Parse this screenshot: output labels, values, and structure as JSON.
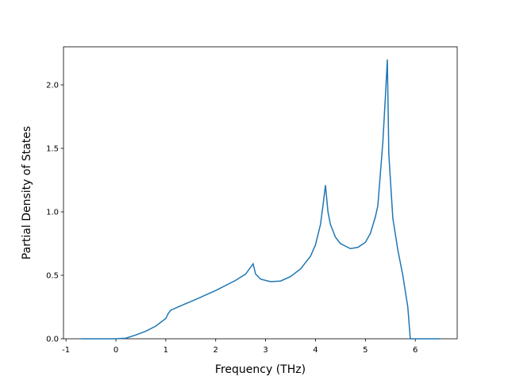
{
  "chart_data": {
    "type": "line",
    "xlabel": "Frequency (THz)",
    "ylabel": "Partial Density of States",
    "x": [
      -0.7,
      0,
      0.2,
      0.4,
      0.6,
      0.8,
      1.0,
      1.05,
      1.1,
      1.3,
      1.6,
      2.0,
      2.4,
      2.6,
      2.75,
      2.8,
      2.9,
      3.1,
      3.3,
      3.5,
      3.7,
      3.9,
      4.0,
      4.1,
      4.15,
      4.2,
      4.25,
      4.3,
      4.4,
      4.5,
      4.7,
      4.85,
      5.0,
      5.1,
      5.2,
      5.25,
      5.3,
      5.35,
      5.4,
      5.44,
      5.47,
      5.55,
      5.65,
      5.75,
      5.85,
      5.9,
      6.0,
      6.5
    ],
    "series": [
      {
        "color": "#1f77b4",
        "values": [
          0,
          0,
          0.005,
          0.03,
          0.06,
          0.1,
          0.16,
          0.2,
          0.225,
          0.26,
          0.31,
          0.38,
          0.46,
          0.51,
          0.59,
          0.51,
          0.47,
          0.45,
          0.455,
          0.49,
          0.55,
          0.65,
          0.74,
          0.9,
          1.05,
          1.21,
          1.0,
          0.9,
          0.8,
          0.75,
          0.71,
          0.72,
          0.76,
          0.83,
          0.96,
          1.05,
          1.3,
          1.55,
          1.9,
          2.2,
          1.45,
          0.95,
          0.7,
          0.5,
          0.25,
          0,
          0,
          0
        ]
      }
    ],
    "xlim": [
      -1.05,
      6.84
    ],
    "xticks": [
      -1,
      0,
      1,
      2,
      3,
      4,
      5,
      6
    ],
    "ylim": [
      0,
      2.3
    ],
    "yticks": [
      {
        "value": 0,
        "label": "0.0"
      },
      {
        "value": 0.5,
        "label": "0.5"
      },
      {
        "value": 1,
        "label": "1.0"
      },
      {
        "value": 1.5,
        "label": "1.5"
      },
      {
        "value": 2,
        "label": "2.0"
      }
    ]
  }
}
